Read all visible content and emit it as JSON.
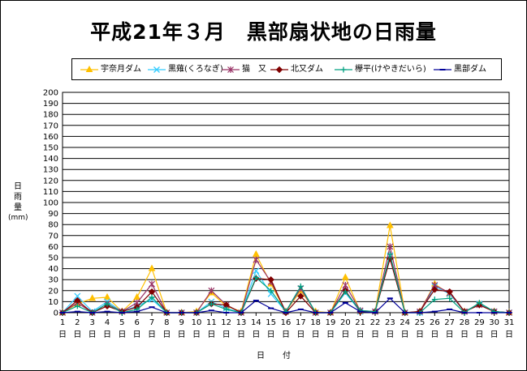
{
  "chart_data": {
    "type": "line",
    "title": "平成21年３月　黒部扇状地の日雨量",
    "xlabel": "日　付",
    "ylabel": [
      "日",
      "雨",
      "量"
    ],
    "yunit": "(mm)",
    "ylim": [
      0,
      200
    ],
    "ytick_step": 10,
    "grid": true,
    "legend_position": "top",
    "x": [
      1,
      2,
      3,
      4,
      5,
      6,
      7,
      8,
      9,
      10,
      11,
      12,
      13,
      14,
      15,
      16,
      17,
      18,
      19,
      20,
      21,
      22,
      23,
      24,
      25,
      26,
      27,
      28,
      29,
      30,
      31
    ],
    "x_suffix": "日",
    "series": [
      {
        "name": "宇奈月ダム",
        "color": "#FFC000",
        "marker": "triangle",
        "values": [
          0,
          8,
          13,
          14,
          1,
          14,
          40,
          0,
          0,
          1,
          18,
          6,
          1,
          53,
          26,
          1,
          20,
          1,
          0,
          32,
          1,
          1,
          79,
          0,
          1,
          26,
          17,
          1,
          8,
          1,
          0
        ]
      },
      {
        "name": "黒薙(くろなぎ)",
        "color": "#33CCFF",
        "marker": "x",
        "values": [
          0,
          15,
          1,
          10,
          1,
          6,
          12,
          0,
          0,
          0,
          10,
          4,
          0,
          38,
          17,
          1,
          22,
          0,
          0,
          18,
          1,
          1,
          52,
          0,
          0,
          24,
          17,
          1,
          8,
          1,
          0
        ]
      },
      {
        "name": "猫　又",
        "color": "#993366",
        "marker": "star",
        "values": [
          0,
          9,
          0,
          8,
          1,
          9,
          26,
          0,
          0,
          0,
          20,
          7,
          0,
          48,
          28,
          1,
          22,
          0,
          0,
          25,
          2,
          1,
          60,
          0,
          1,
          25,
          18,
          1,
          7,
          1,
          0
        ]
      },
      {
        "name": "北又ダム",
        "color": "#800000",
        "marker": "diamond",
        "values": [
          0,
          11,
          0,
          6,
          1,
          5,
          19,
          0,
          0,
          0,
          8,
          7,
          0,
          31,
          30,
          0,
          15,
          0,
          0,
          20,
          1,
          1,
          49,
          0,
          1,
          21,
          19,
          1,
          7,
          1,
          0
        ]
      },
      {
        "name": "欅平(けやきだいら)",
        "color": "#00A080",
        "marker": "plus",
        "values": [
          0,
          6,
          0,
          8,
          0,
          3,
          14,
          0,
          0,
          0,
          8,
          3,
          0,
          32,
          20,
          1,
          24,
          0,
          0,
          19,
          2,
          1,
          53,
          0,
          0,
          12,
          13,
          0,
          9,
          1,
          0
        ]
      },
      {
        "name": "黒部ダム",
        "color": "#000099",
        "marker": "dash",
        "values": [
          0,
          1,
          0,
          1,
          0,
          1,
          5,
          0,
          0,
          0,
          2,
          0,
          0,
          11,
          4,
          0,
          3,
          0,
          0,
          9,
          1,
          0,
          13,
          0,
          0,
          1,
          3,
          0,
          0,
          0,
          0
        ]
      }
    ]
  }
}
